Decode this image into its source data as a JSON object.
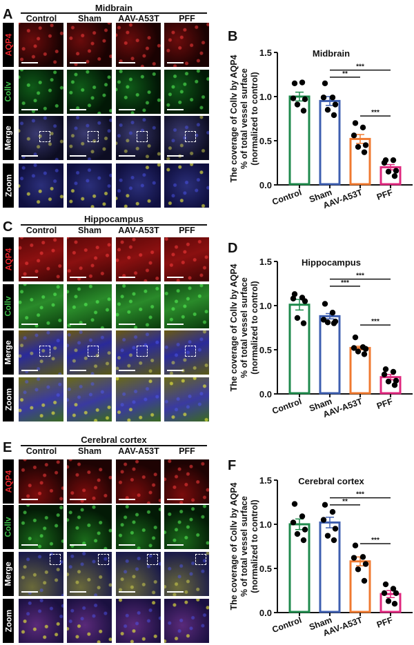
{
  "figure": {
    "columns": [
      "Control",
      "Sham",
      "AAV-A53T",
      "PFF"
    ],
    "row_labels": [
      {
        "label": "AQP4",
        "color": "#e8262b"
      },
      {
        "label": "Collv",
        "color": "#3fc04a"
      },
      {
        "label": "Merge",
        "color": "#ffffff"
      },
      {
        "label": "Zoom",
        "color": "#ffffff"
      }
    ],
    "panels": [
      {
        "letter": "A",
        "region": "Midbrain"
      },
      {
        "letter": "C",
        "region": "Hippocampus"
      },
      {
        "letter": "E",
        "region": "Cerebral cortex"
      }
    ],
    "chart_letters": [
      "B",
      "D",
      "F"
    ]
  },
  "colors": {
    "control": "#1f8a4c",
    "sham": "#3e5fb0",
    "aav": "#f07a30",
    "pff": "#e0287f"
  },
  "chart_data": [
    {
      "type": "bar",
      "panel": "B",
      "title": "Midbrain",
      "ylabel": "The coverage of Collv by AQP4 % of total vessel surface (normalized to control)",
      "ylabel_lines": [
        "The coverage of Collv by AQP4",
        "% of total vessel surface",
        "(normalized to control)"
      ],
      "xlabel": "",
      "categories": [
        "Control",
        "Sham",
        "AAV-A53T",
        "PFF"
      ],
      "values": [
        1.0,
        0.95,
        0.52,
        0.2
      ],
      "sem": [
        0.05,
        0.05,
        0.05,
        0.03
      ],
      "points": [
        [
          1.15,
          1.16,
          0.98,
          0.97,
          0.91,
          0.84
        ],
        [
          1.15,
          0.99,
          0.99,
          0.91,
          0.85,
          0.79
        ],
        [
          0.7,
          0.65,
          0.56,
          0.45,
          0.43,
          0.37
        ],
        [
          0.28,
          0.28,
          0.25,
          0.16,
          0.15,
          0.1
        ]
      ],
      "ylim": [
        0,
        1.5
      ],
      "yticks": [
        "0.0",
        "0.5",
        "1.0",
        "1.5"
      ],
      "significance": [
        {
          "from": "Sham",
          "to": "AAV-A53T",
          "label": "**"
        },
        {
          "from": "Sham",
          "to": "PFF",
          "label": "***"
        },
        {
          "from": "AAV-A53T",
          "to": "PFF",
          "label": "***"
        }
      ]
    },
    {
      "type": "bar",
      "panel": "D",
      "title": "Hippocampus",
      "ylabel": "The coverage of Collv by AQP4 % of total vessel surface (normalized to control)",
      "ylabel_lines": [
        "The coverage of Collv by AQP4",
        "% of total vessel surface",
        "(normalized to control)"
      ],
      "xlabel": "",
      "categories": [
        "Control",
        "Sham",
        "AAV-A53T",
        "PFF"
      ],
      "values": [
        1.01,
        0.88,
        0.52,
        0.19
      ],
      "sem": [
        0.06,
        0.03,
        0.02,
        0.03
      ],
      "points": [
        [
          1.13,
          1.09,
          1.08,
          1.05,
          0.86,
          0.8
        ],
        [
          1.02,
          0.92,
          0.84,
          0.82,
          0.81,
          0.8
        ],
        [
          0.64,
          0.53,
          0.52,
          0.51,
          0.48,
          0.45
        ],
        [
          0.28,
          0.25,
          0.22,
          0.15,
          0.14,
          0.1
        ]
      ],
      "ylim": [
        0,
        1.5
      ],
      "yticks": [
        "0.0",
        "0.5",
        "1.0",
        "1.5"
      ],
      "significance": [
        {
          "from": "Sham",
          "to": "AAV-A53T",
          "label": "***"
        },
        {
          "from": "Sham",
          "to": "PFF",
          "label": "***"
        },
        {
          "from": "AAV-A53T",
          "to": "PFF",
          "label": "***"
        }
      ]
    },
    {
      "type": "bar",
      "panel": "F",
      "title": "Cerebral cortex",
      "ylabel": "The coverage of Collv by AQP4 % of total vessel surface (normalized to control)",
      "ylabel_lines": [
        "The coverage of Collv by AQP4",
        "% of total vessel surface",
        "(normalized to control)"
      ],
      "xlabel": "",
      "categories": [
        "Control",
        "Sham",
        "AAV-A53T",
        "PFF"
      ],
      "values": [
        1.0,
        1.02,
        0.58,
        0.21
      ],
      "sem": [
        0.06,
        0.06,
        0.05,
        0.04
      ],
      "points": [
        [
          1.23,
          1.09,
          1.02,
          0.94,
          0.89,
          0.82
        ],
        [
          1.22,
          1.14,
          1.05,
          0.95,
          0.87,
          0.82
        ],
        [
          0.76,
          0.63,
          0.62,
          0.55,
          0.49,
          0.36
        ],
        [
          0.32,
          0.27,
          0.22,
          0.22,
          0.13,
          0.1
        ]
      ],
      "ylim": [
        0,
        1.5
      ],
      "yticks": [
        "0.0",
        "0.5",
        "1.0",
        "1.5"
      ],
      "significance": [
        {
          "from": "Sham",
          "to": "AAV-A53T",
          "label": "**"
        },
        {
          "from": "Sham",
          "to": "PFF",
          "label": "***"
        },
        {
          "from": "AAV-A53T",
          "to": "PFF",
          "label": "***"
        }
      ]
    }
  ]
}
